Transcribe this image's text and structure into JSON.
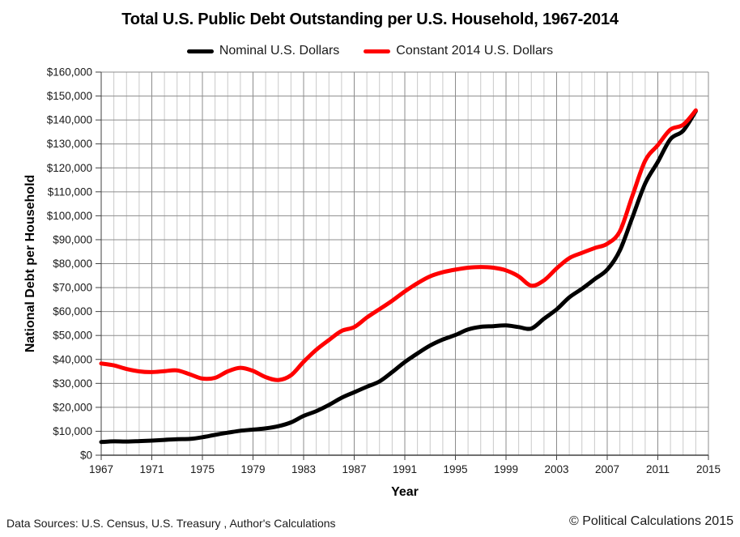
{
  "title": "Total U.S. Public Debt Outstanding per U.S. Household, 1967-2014",
  "footer": {
    "data_sources": "Data Sources: U.S. Census, U.S. Treasury , Author's Calculations",
    "copyright": "© Political Calculations 2015"
  },
  "colors": {
    "nominal_series": "#000000",
    "constant_series": "#ff0000",
    "minor_gridline": "#c9c9c9",
    "major_gridline": "#8c8c8c",
    "axis_line": "#404040",
    "tick_text": "#1a1a1a"
  },
  "chart_data": {
    "type": "line",
    "title": "Total U.S. Public Debt Outstanding per U.S. Household, 1967-2014",
    "xlabel": "Year",
    "ylabel": "National Debt per Household",
    "legend_position": "top",
    "grid": {
      "horizontal_step": 10000,
      "minor_vertical_step_years": 1,
      "major_vertical_step_years": 4
    },
    "xlim": [
      1967,
      2015
    ],
    "ylim": [
      0,
      160000
    ],
    "x_ticks": [
      1967,
      1971,
      1975,
      1979,
      1983,
      1987,
      1991,
      1995,
      1999,
      2003,
      2007,
      2011,
      2015
    ],
    "y_tick_step": 10000,
    "y_tick_prefix": "$",
    "x": [
      1967,
      1968,
      1969,
      1970,
      1971,
      1972,
      1973,
      1974,
      1975,
      1976,
      1977,
      1978,
      1979,
      1980,
      1981,
      1982,
      1983,
      1984,
      1985,
      1986,
      1987,
      1988,
      1989,
      1990,
      1991,
      1992,
      1993,
      1994,
      1995,
      1996,
      1997,
      1998,
      1999,
      2000,
      2001,
      2002,
      2003,
      2004,
      2005,
      2006,
      2007,
      2008,
      2009,
      2010,
      2011,
      2012,
      2013,
      2014
    ],
    "series": [
      {
        "name": "Nominal U.S. Dollars",
        "color": "#000000",
        "values": [
          5500,
          5800,
          5700,
          5900,
          6100,
          6400,
          6700,
          6800,
          7500,
          8500,
          9400,
          10200,
          10700,
          11200,
          12100,
          13700,
          16400,
          18400,
          21000,
          24000,
          26300,
          28600,
          30800,
          34700,
          38900,
          42500,
          45800,
          48300,
          50200,
          52500,
          53600,
          53900,
          54200,
          53500,
          52900,
          57000,
          60900,
          65900,
          69500,
          73500,
          77500,
          85500,
          99500,
          113500,
          122500,
          132000,
          135500,
          143700
        ]
      },
      {
        "name": "Constant 2014 U.S. Dollars",
        "color": "#ff0000",
        "values": [
          38300,
          37500,
          36000,
          35000,
          34700,
          35100,
          35400,
          33800,
          32000,
          32300,
          35000,
          36500,
          35200,
          32600,
          31400,
          33400,
          39000,
          44000,
          48100,
          51900,
          53500,
          57500,
          61000,
          64500,
          68400,
          71800,
          74700,
          76400,
          77500,
          78300,
          78600,
          78300,
          77200,
          74700,
          70800,
          73000,
          78000,
          82300,
          84500,
          86500,
          88300,
          93500,
          108500,
          123000,
          129500,
          136000,
          138000,
          144000
        ]
      }
    ]
  }
}
